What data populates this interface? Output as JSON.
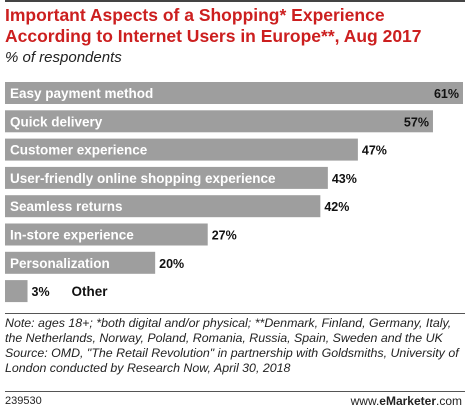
{
  "header": {
    "title": "Important Aspects of a Shopping* Experience According to Internet Users in Europe**, Aug 2017",
    "subtitle": "% of respondents"
  },
  "chart_data": {
    "type": "bar",
    "orientation": "horizontal",
    "categories": [
      "Easy payment method",
      "Quick delivery",
      "Customer experience",
      "User-friendly online shopping experience",
      "Seamless returns",
      "In-store experience",
      "Personalization",
      "Other"
    ],
    "values": [
      61,
      57,
      47,
      43,
      42,
      27,
      20,
      3
    ],
    "value_labels": [
      "61%",
      "57%",
      "47%",
      "43%",
      "42%",
      "27%",
      "20%",
      "3%"
    ],
    "unit": "%",
    "bar_color": "#9e9e9e",
    "xlim": [
      0,
      61
    ],
    "grid": false,
    "legend": false
  },
  "notes": {
    "note": "Note: ages 18+; *both digital and/or physical; **Denmark, Finland, Germany, Italy, the Netherlands, Norway, Poland, Romania, Russia, Spain, Sweden and the UK",
    "source": "Source: OMD, \"The Retail Revolution\" in partnership with Goldsmiths, University of London conducted by Research Now, April 30, 2018"
  },
  "footer": {
    "chart_id": "239530",
    "brand_prefix": "www.",
    "brand_name": "eMarketer",
    "brand_suffix": ".com"
  },
  "colors": {
    "title": "#cc1f1f",
    "bar": "#9e9e9e"
  }
}
